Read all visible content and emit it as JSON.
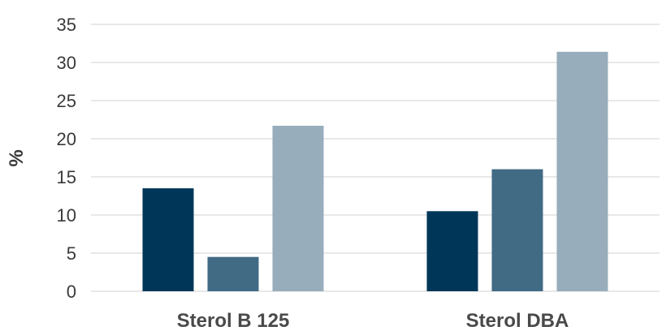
{
  "chart_data": {
    "type": "bar",
    "categories": [
      "Sterol B 125",
      "Sterol DBA"
    ],
    "series": [
      {
        "values": [
          13.5,
          10.5
        ],
        "color": "#003758"
      },
      {
        "values": [
          4.5,
          16
        ],
        "color": "#416a85"
      },
      {
        "values": [
          21.7,
          31.4
        ],
        "color": "#97adbb"
      }
    ],
    "ylabel": "%",
    "ylim": [
      0,
      35
    ],
    "yticks": [
      0,
      5,
      10,
      15,
      20,
      25,
      30,
      35
    ],
    "grid": true,
    "legend": false
  }
}
